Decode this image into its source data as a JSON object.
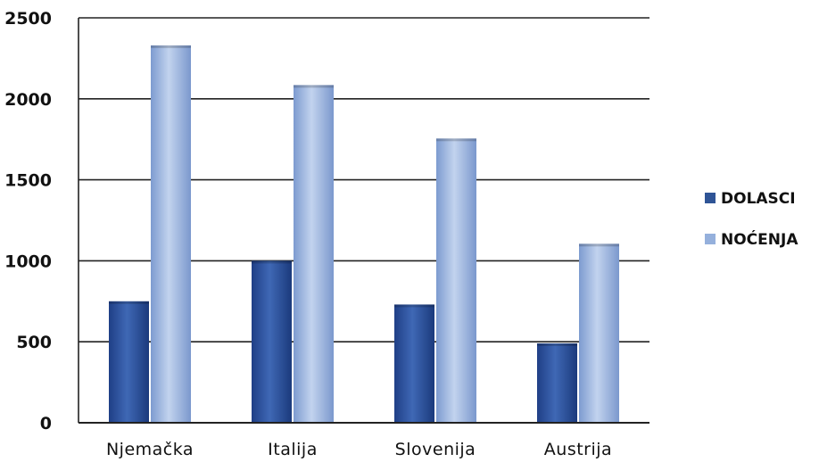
{
  "chart_data": {
    "type": "bar",
    "categories": [
      "Njemačka",
      "Italija",
      "Slovenija",
      "Austrija"
    ],
    "series": [
      {
        "name": "DOLASCI",
        "values": [
          750,
          1000,
          730,
          490
        ],
        "color": "#2f5496"
      },
      {
        "name": "NOĆENJA",
        "values": [
          2330,
          2085,
          1755,
          1105
        ],
        "color": "#95b0dc"
      }
    ],
    "yticks": [
      "0",
      "500",
      "1000",
      "1500",
      "2000",
      "2500"
    ],
    "ylim": [
      0,
      2500
    ],
    "grid": true,
    "legend_position": "right"
  }
}
